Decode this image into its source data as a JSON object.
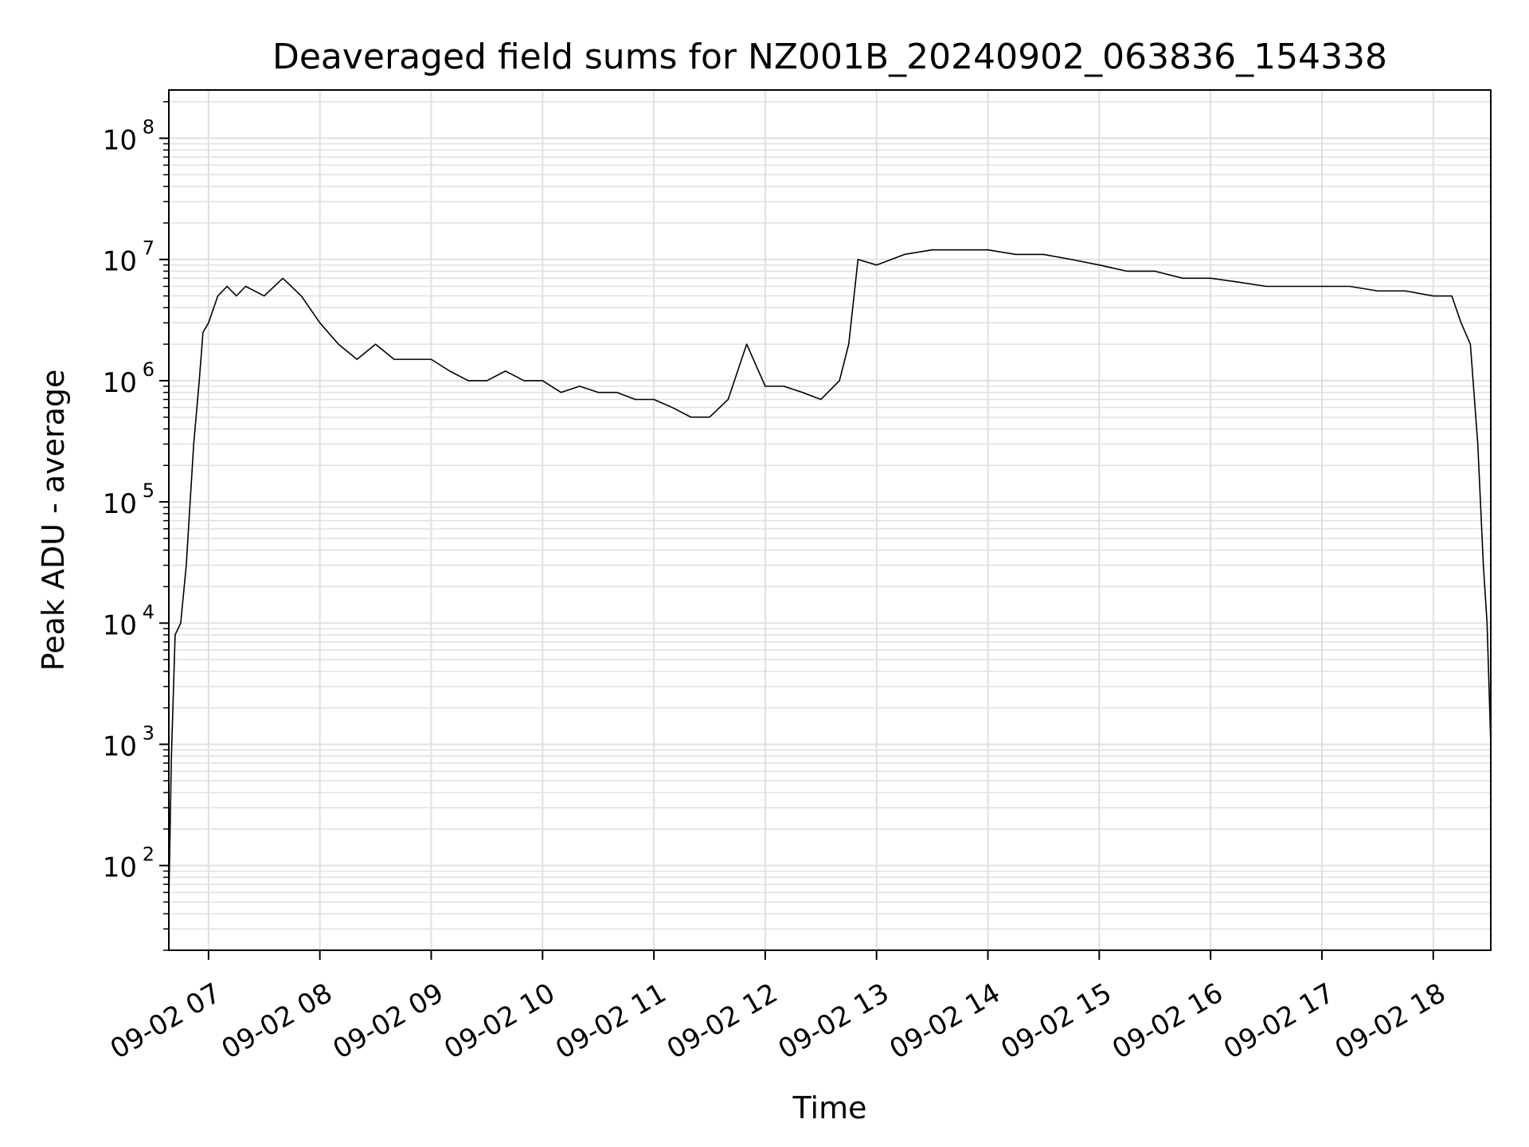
{
  "chart_data": {
    "type": "line",
    "title": "Deaveraged field sums for NZ001B_20240902_063836_154338",
    "xlabel": "Time",
    "ylabel": "Peak ADU - average",
    "yscale": "log",
    "ylim": [
      20,
      250000000
    ],
    "xlim": [
      "2024-09-02 06:38:36",
      "2024-09-02 18:31:00"
    ],
    "x_ticks": [
      {
        "label": "09-02 07",
        "t": "2024-09-02 07:00"
      },
      {
        "label": "09-02 08",
        "t": "2024-09-02 08:00"
      },
      {
        "label": "09-02 09",
        "t": "2024-09-02 09:00"
      },
      {
        "label": "09-02 10",
        "t": "2024-09-02 10:00"
      },
      {
        "label": "09-02 11",
        "t": "2024-09-02 11:00"
      },
      {
        "label": "09-02 12",
        "t": "2024-09-02 12:00"
      },
      {
        "label": "09-02 13",
        "t": "2024-09-02 13:00"
      },
      {
        "label": "09-02 14",
        "t": "2024-09-02 14:00"
      },
      {
        "label": "09-02 15",
        "t": "2024-09-02 15:00"
      },
      {
        "label": "09-02 16",
        "t": "2024-09-02 16:00"
      },
      {
        "label": "09-02 17",
        "t": "2024-09-02 17:00"
      },
      {
        "label": "09-02 18",
        "t": "2024-09-02 18:00"
      }
    ],
    "y_ticks": [
      {
        "base": "10",
        "exp": "2",
        "value": 100
      },
      {
        "base": "10",
        "exp": "3",
        "value": 1000
      },
      {
        "base": "10",
        "exp": "4",
        "value": 10000
      },
      {
        "base": "10",
        "exp": "5",
        "value": 100000
      },
      {
        "base": "10",
        "exp": "6",
        "value": 1000000
      },
      {
        "base": "10",
        "exp": "7",
        "value": 10000000
      },
      {
        "base": "10",
        "exp": "8",
        "value": 100000000
      }
    ],
    "grid": true,
    "line_color": "#000000",
    "grid_color": "#e0e0e0",
    "series": [
      {
        "x": [
          "2024-09-02 06:38:36",
          "2024-09-02 06:40",
          "2024-09-02 06:42",
          "2024-09-02 06:45",
          "2024-09-02 06:48",
          "2024-09-02 06:52",
          "2024-09-02 06:55",
          "2024-09-02 06:57",
          "2024-09-02 07:00",
          "2024-09-02 07:05",
          "2024-09-02 07:10",
          "2024-09-02 07:15",
          "2024-09-02 07:20",
          "2024-09-02 07:30",
          "2024-09-02 07:40",
          "2024-09-02 07:50",
          "2024-09-02 08:00",
          "2024-09-02 08:10",
          "2024-09-02 08:20",
          "2024-09-02 08:30",
          "2024-09-02 08:40",
          "2024-09-02 08:50",
          "2024-09-02 09:00",
          "2024-09-02 09:10",
          "2024-09-02 09:20",
          "2024-09-02 09:30",
          "2024-09-02 09:40",
          "2024-09-02 09:50",
          "2024-09-02 10:00",
          "2024-09-02 10:10",
          "2024-09-02 10:20",
          "2024-09-02 10:30",
          "2024-09-02 10:40",
          "2024-09-02 10:50",
          "2024-09-02 11:00",
          "2024-09-02 11:10",
          "2024-09-02 11:20",
          "2024-09-02 11:30",
          "2024-09-02 11:40",
          "2024-09-02 11:50",
          "2024-09-02 12:00",
          "2024-09-02 12:10",
          "2024-09-02 12:20",
          "2024-09-02 12:30",
          "2024-09-02 12:40",
          "2024-09-02 12:45",
          "2024-09-02 12:50",
          "2024-09-02 13:00",
          "2024-09-02 13:15",
          "2024-09-02 13:30",
          "2024-09-02 13:45",
          "2024-09-02 14:00",
          "2024-09-02 14:15",
          "2024-09-02 14:30",
          "2024-09-02 14:45",
          "2024-09-02 15:00",
          "2024-09-02 15:15",
          "2024-09-02 15:30",
          "2024-09-02 15:45",
          "2024-09-02 16:00",
          "2024-09-02 16:15",
          "2024-09-02 16:30",
          "2024-09-02 16:45",
          "2024-09-02 17:00",
          "2024-09-02 17:15",
          "2024-09-02 17:30",
          "2024-09-02 17:45",
          "2024-09-02 18:00",
          "2024-09-02 18:10",
          "2024-09-02 18:15",
          "2024-09-02 18:20",
          "2024-09-02 18:24",
          "2024-09-02 18:27",
          "2024-09-02 18:29",
          "2024-09-02 18:31"
        ],
        "y": [
          50,
          800,
          8000,
          10000,
          30000,
          300000,
          1000000,
          2500000,
          3000000,
          5000000,
          6000000,
          5000000,
          6000000,
          5000000,
          7000000,
          5000000,
          3000000,
          2000000,
          1500000,
          2000000,
          1500000,
          1500000,
          1500000,
          1200000,
          1000000,
          1000000,
          1200000,
          1000000,
          1000000,
          800000,
          900000,
          800000,
          800000,
          700000,
          700000,
          600000,
          500000,
          500000,
          700000,
          2000000,
          900000,
          900000,
          800000,
          700000,
          1000000,
          2000000,
          10000000,
          9000000,
          11000000,
          12000000,
          12000000,
          12000000,
          11000000,
          11000000,
          10000000,
          9000000,
          8000000,
          8000000,
          7000000,
          7000000,
          6500000,
          6000000,
          6000000,
          6000000,
          6000000,
          5500000,
          5500000,
          5000000,
          5000000,
          3000000,
          2000000,
          300000,
          30000,
          10000,
          1000
        ]
      }
    ]
  }
}
